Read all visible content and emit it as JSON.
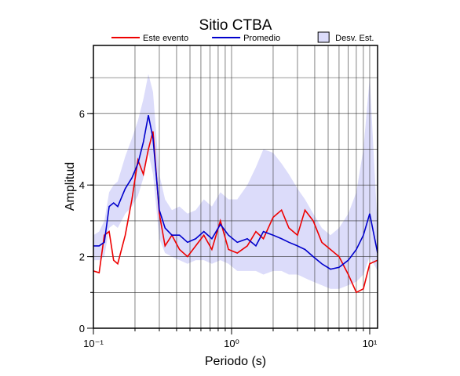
{
  "chart_data": {
    "type": "line",
    "title": "Sitio CTBA",
    "xlabel": "Periodo (s)",
    "ylabel": "Amplitud",
    "xscale": "log",
    "xlim": [
      0.1,
      11.4
    ],
    "ylim": [
      0,
      7.9
    ],
    "xticks": [
      {
        "value": 0.1,
        "label": "10⁻¹"
      },
      {
        "value": 1,
        "label": "10⁰"
      },
      {
        "value": 10,
        "label": "10¹"
      }
    ],
    "yticks": [
      0,
      2,
      4,
      6
    ],
    "xgrid": [
      0.2,
      0.3,
      0.4,
      0.5,
      0.6,
      0.7,
      0.8,
      0.9,
      1,
      2,
      3,
      4,
      5,
      6,
      7,
      8,
      9,
      10
    ],
    "ygrid": [
      1,
      2,
      3,
      4,
      5,
      6,
      7
    ],
    "x": [
      0.1,
      0.11,
      0.12,
      0.13,
      0.14,
      0.15,
      0.17,
      0.19,
      0.21,
      0.23,
      0.25,
      0.27,
      0.3,
      0.33,
      0.37,
      0.42,
      0.48,
      0.55,
      0.63,
      0.72,
      0.83,
      0.95,
      1.1,
      1.3,
      1.5,
      1.7,
      2,
      2.3,
      2.6,
      3,
      3.4,
      3.9,
      4.5,
      5.2,
      6,
      7,
      8,
      9,
      10,
      11.4
    ],
    "series": [
      {
        "name": "Este evento",
        "color": "#ee0000",
        "values": [
          1.6,
          1.55,
          2.6,
          2.7,
          1.9,
          1.8,
          2.6,
          3.6,
          4.7,
          4.3,
          5.0,
          5.5,
          3.2,
          2.3,
          2.6,
          2.2,
          2.0,
          2.3,
          2.6,
          2.2,
          3.0,
          2.2,
          2.1,
          2.3,
          2.7,
          2.5,
          3.1,
          3.3,
          2.8,
          2.6,
          3.3,
          3.0,
          2.4,
          2.2,
          2.0,
          1.5,
          1.0,
          1.1,
          1.8,
          1.9
        ]
      },
      {
        "name": "Promedio",
        "color": "#0000cc",
        "values": [
          2.3,
          2.3,
          2.4,
          3.4,
          3.5,
          3.4,
          3.9,
          4.2,
          4.6,
          5.2,
          5.95,
          5.3,
          3.3,
          2.8,
          2.6,
          2.6,
          2.4,
          2.5,
          2.7,
          2.5,
          2.9,
          2.6,
          2.4,
          2.5,
          2.3,
          2.7,
          2.6,
          2.5,
          2.4,
          2.3,
          2.2,
          2.0,
          1.8,
          1.65,
          1.7,
          1.9,
          2.2,
          2.6,
          3.2,
          2.1
        ]
      },
      {
        "name": "Desv. Est.",
        "color": "#dcdcfa",
        "upper": [
          2.6,
          2.7,
          3.0,
          3.8,
          4.0,
          4.1,
          4.8,
          5.3,
          5.8,
          6.4,
          7.1,
          6.6,
          4.3,
          3.6,
          3.3,
          3.4,
          3.2,
          3.3,
          3.6,
          3.4,
          3.8,
          3.6,
          3.6,
          4.0,
          4.5,
          5.0,
          4.9,
          4.6,
          4.3,
          3.9,
          3.6,
          3.2,
          2.8,
          2.6,
          2.8,
          3.2,
          3.8,
          5.0,
          7.0,
          2.8
        ],
        "lower": [
          1.9,
          1.9,
          2.0,
          2.8,
          2.9,
          2.8,
          3.2,
          3.4,
          3.7,
          4.2,
          4.9,
          4.3,
          2.5,
          2.1,
          2.0,
          1.9,
          1.8,
          1.9,
          1.9,
          1.8,
          1.9,
          1.8,
          1.6,
          1.6,
          1.6,
          1.5,
          1.6,
          1.6,
          1.5,
          1.5,
          1.4,
          1.3,
          1.2,
          1.1,
          1.1,
          1.2,
          1.3,
          1.5,
          2.0,
          1.6
        ]
      }
    ]
  }
}
